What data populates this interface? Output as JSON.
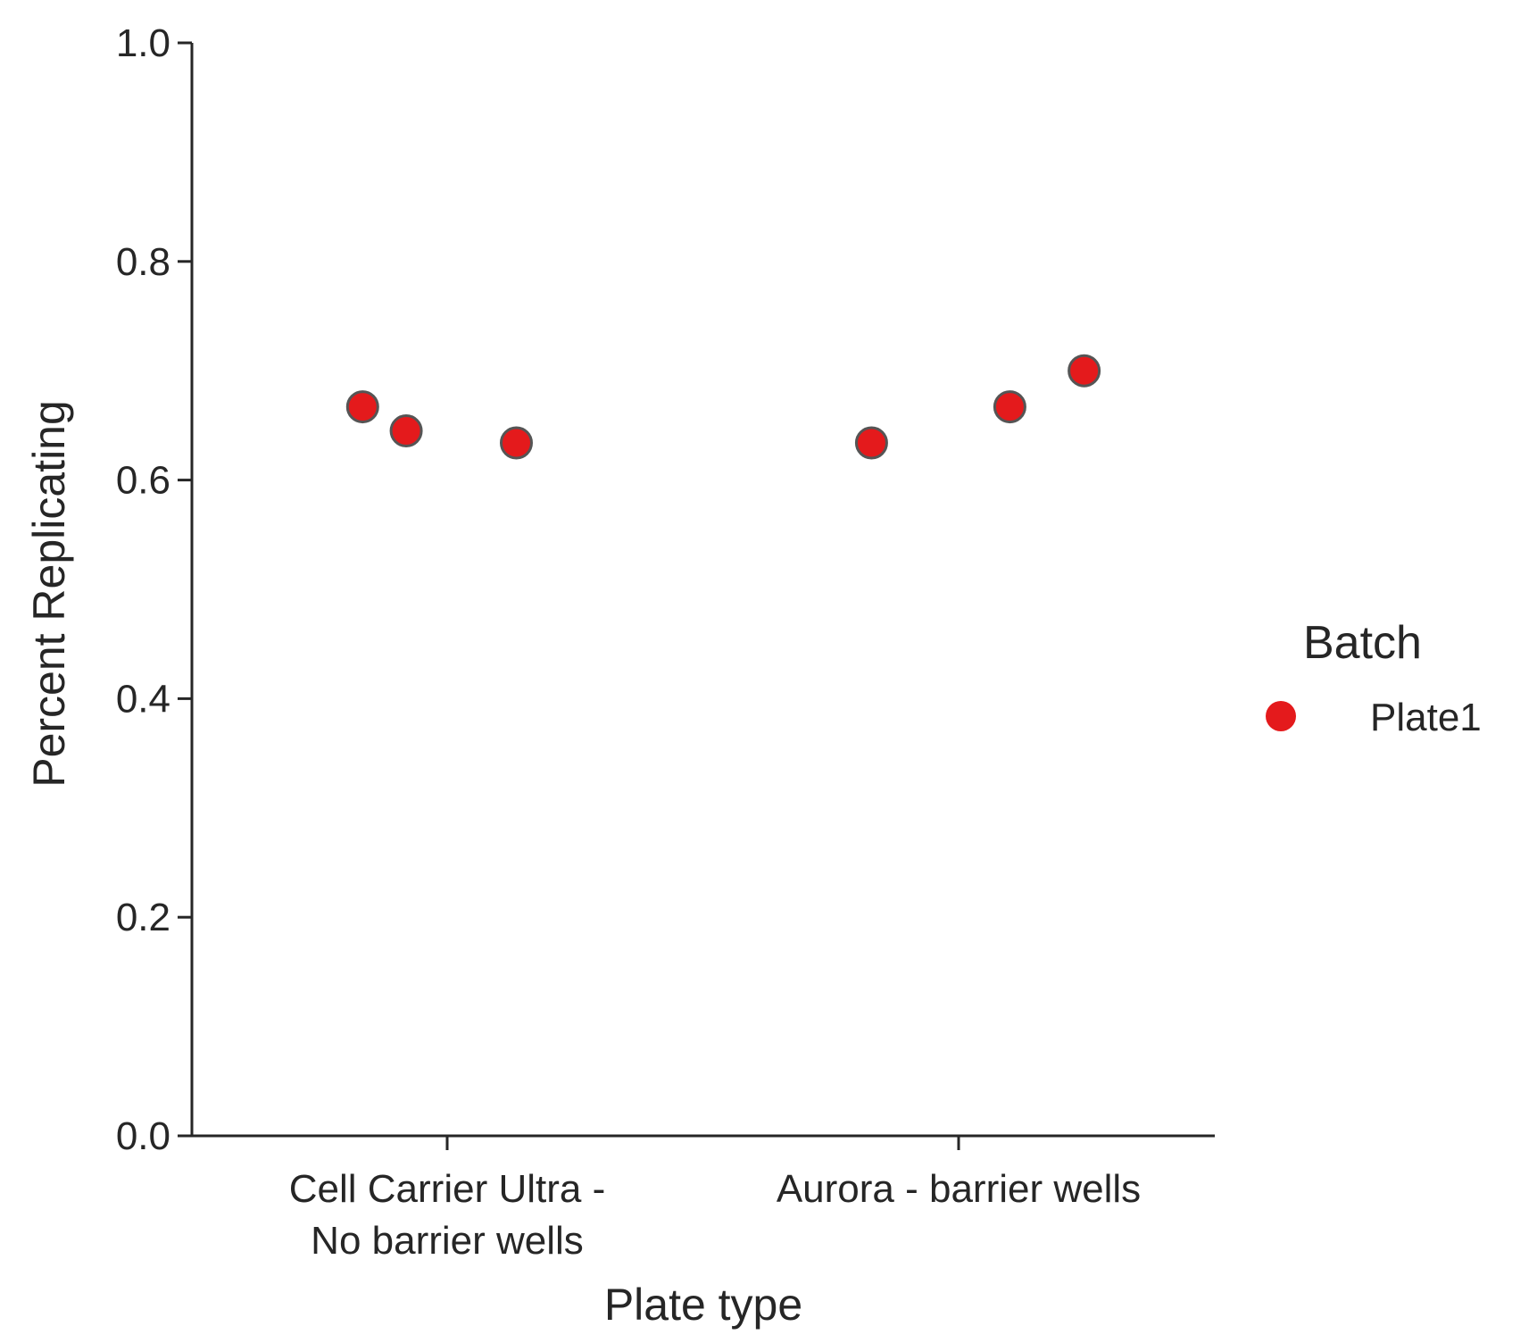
{
  "chart_data": {
    "type": "scatter",
    "title": "",
    "xlabel": "Plate type",
    "ylabel": "Percent Replicating",
    "categories": [
      [
        "Cell Carrier Ultra -",
        "No barrier wells"
      ],
      [
        "Aurora - barrier wells"
      ]
    ],
    "ylim": [
      0.0,
      1.0
    ],
    "yticks": [
      "0.0",
      "0.2",
      "0.4",
      "0.6",
      "0.8",
      "1.0"
    ],
    "grid": false,
    "legend": {
      "title": "Batch",
      "position": "right"
    },
    "series": [
      {
        "name": "Plate1",
        "color": "#e41a1c",
        "edge_color": "#555555",
        "points": [
          {
            "category": 0,
            "jitter": -0.33,
            "y": 0.667
          },
          {
            "category": 0,
            "jitter": -0.16,
            "y": 0.645
          },
          {
            "category": 0,
            "jitter": 0.27,
            "y": 0.634
          },
          {
            "category": 1,
            "jitter": -0.34,
            "y": 0.634
          },
          {
            "category": 1,
            "jitter": 0.2,
            "y": 0.667
          },
          {
            "category": 1,
            "jitter": 0.49,
            "y": 0.7
          }
        ]
      }
    ]
  }
}
